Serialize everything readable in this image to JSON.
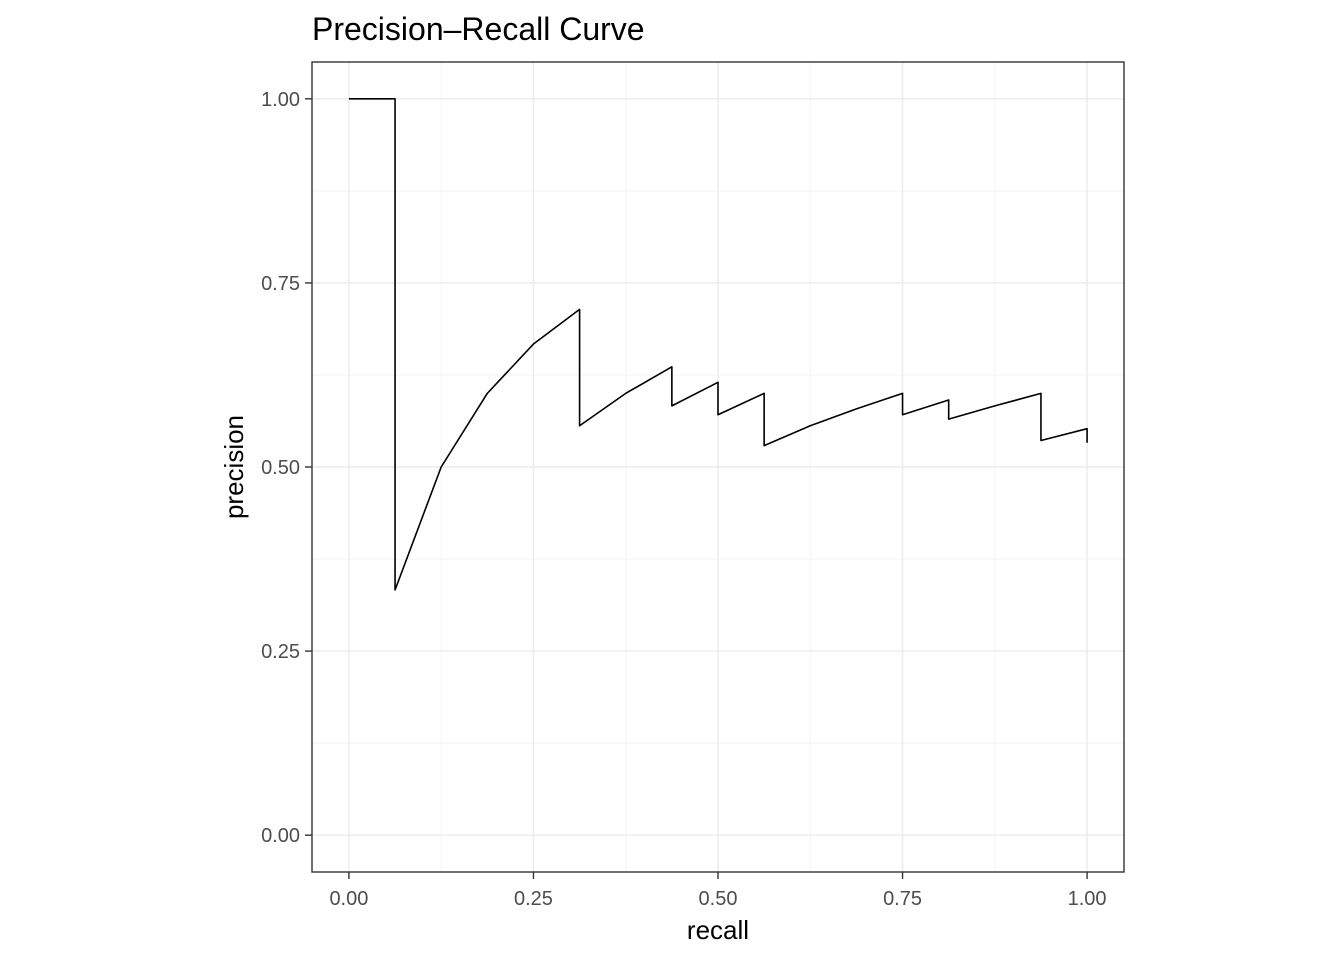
{
  "chart_data": {
    "type": "line",
    "title": "Precision–Recall Curve",
    "xlabel": "recall",
    "ylabel": "precision",
    "xlim": [
      -0.05,
      1.05
    ],
    "ylim": [
      -0.05,
      1.05
    ],
    "x_ticks": [
      0.0,
      0.25,
      0.5,
      0.75,
      1.0
    ],
    "x_tick_labels": [
      "0.00",
      "0.25",
      "0.50",
      "0.75",
      "1.00"
    ],
    "y_ticks": [
      0.0,
      0.25,
      0.5,
      0.75,
      1.0
    ],
    "y_tick_labels": [
      "0.00",
      "0.25",
      "0.50",
      "0.75",
      "1.00"
    ],
    "grid": true,
    "legend": "none",
    "series": [
      {
        "x": [
          0.0,
          0.0625,
          0.0625,
          0.125,
          0.1875,
          0.25,
          0.3125,
          0.3125,
          0.375,
          0.4375,
          0.4375,
          0.5,
          0.5,
          0.5625,
          0.5625,
          0.625,
          0.6875,
          0.75,
          0.75,
          0.8125,
          0.8125,
          0.875,
          0.9375,
          0.9375,
          1.0,
          1.0
        ],
        "y": [
          1.0,
          1.0,
          0.333,
          0.5,
          0.6,
          0.667,
          0.714,
          0.556,
          0.6,
          0.636,
          0.583,
          0.615,
          0.571,
          0.6,
          0.529,
          0.556,
          0.579,
          0.6,
          0.571,
          0.591,
          0.565,
          0.583,
          0.6,
          0.536,
          0.552,
          0.533
        ]
      }
    ]
  }
}
